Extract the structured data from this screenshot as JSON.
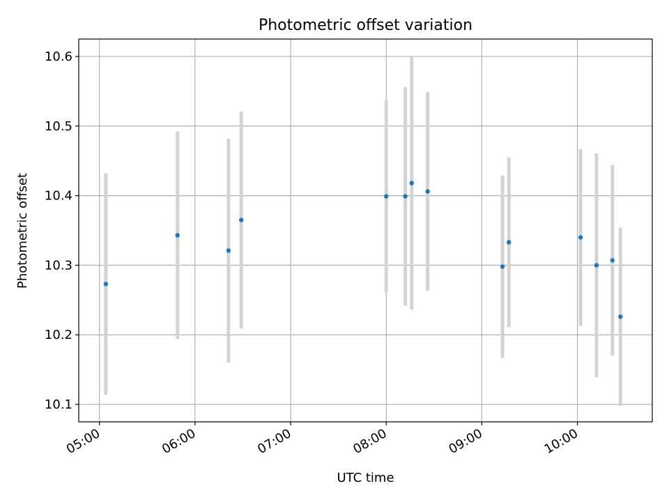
{
  "chart_data": {
    "type": "scatter",
    "title": "Photometric offset variation",
    "xlabel": "UTC time",
    "ylabel": "Photometric offset",
    "xlim": [
      "04:47",
      "10:47"
    ],
    "ylim": [
      10.075,
      10.625
    ],
    "x_ticks": [
      "05:00",
      "06:00",
      "07:00",
      "08:00",
      "09:00",
      "10:00"
    ],
    "y_ticks": [
      "10.1",
      "10.2",
      "10.3",
      "10.4",
      "10.5",
      "10.6"
    ],
    "grid": true,
    "x_tick_rotation_deg": 30,
    "colors": {
      "points": "#1f77b4",
      "errorbars": "#d3d3d3",
      "grid": "#b0b0b0",
      "axes": "#000000"
    },
    "points": [
      {
        "time": "05:04",
        "value": 10.273,
        "err": 0.159
      },
      {
        "time": "05:49",
        "value": 10.343,
        "err": 0.149
      },
      {
        "time": "06:21",
        "value": 10.321,
        "err": 0.161
      },
      {
        "time": "06:29",
        "value": 10.365,
        "err": 0.156
      },
      {
        "time": "08:00",
        "value": 10.399,
        "err": 0.138
      },
      {
        "time": "08:12",
        "value": 10.399,
        "err": 0.157
      },
      {
        "time": "08:16",
        "value": 10.418,
        "err": 0.182
      },
      {
        "time": "08:26",
        "value": 10.406,
        "err": 0.143
      },
      {
        "time": "09:13",
        "value": 10.298,
        "err": 0.131
      },
      {
        "time": "09:17",
        "value": 10.333,
        "err": 0.122
      },
      {
        "time": "10:02",
        "value": 10.34,
        "err": 0.127
      },
      {
        "time": "10:12",
        "value": 10.3,
        "err": 0.161
      },
      {
        "time": "10:22",
        "value": 10.307,
        "err": 0.137
      },
      {
        "time": "10:27",
        "value": 10.226,
        "err": 0.128
      }
    ]
  }
}
